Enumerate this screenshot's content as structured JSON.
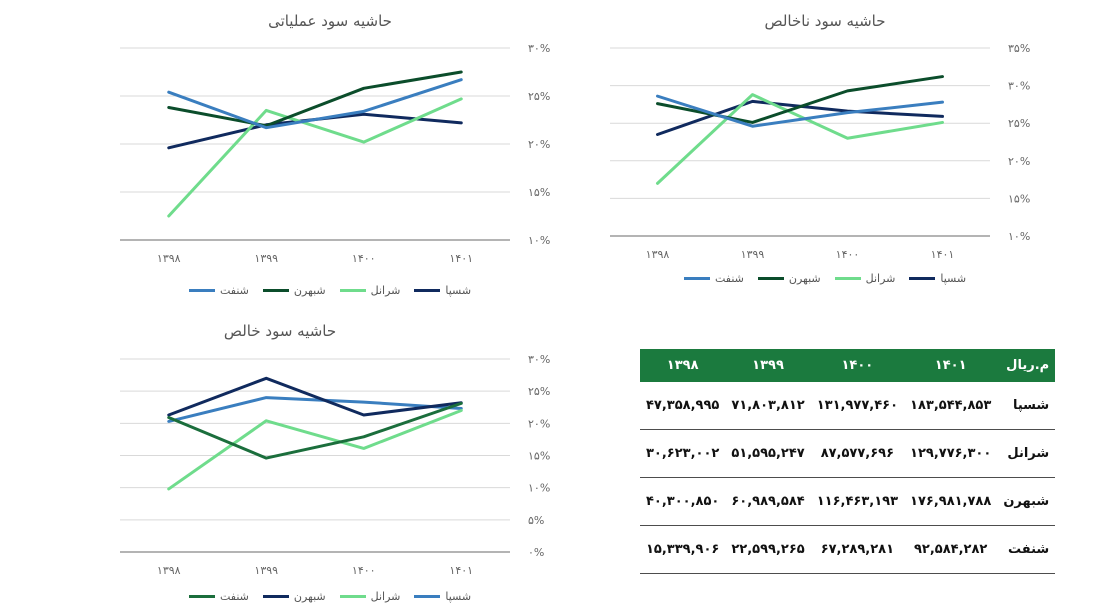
{
  "charts": [
    {
      "id": "operating",
      "title": "حاشیه سود عملیاتی",
      "type": "line",
      "categories": [
        "۱۳۹۸",
        "۱۳۹۹",
        "۱۴۰۰",
        "۱۴۰۱"
      ],
      "ylim": [
        10,
        30
      ],
      "yticks": [
        "۱۰%",
        "۱۵%",
        "۲۰%",
        "۲۵%",
        "۳۰%"
      ],
      "series": [
        {
          "name": "شسپا",
          "color": "#102a5e",
          "values": [
            19.6,
            22.0,
            23.1,
            22.2
          ]
        },
        {
          "name": "شرانل",
          "color": "#6fdc8c",
          "values": [
            12.5,
            23.5,
            20.2,
            24.7
          ]
        },
        {
          "name": "شبهرن",
          "color": "#0b4d2b",
          "values": [
            23.8,
            21.9,
            25.8,
            27.5
          ]
        },
        {
          "name": "شنفت",
          "color": "#3a7ebf",
          "values": [
            25.4,
            21.7,
            23.4,
            26.7
          ]
        }
      ],
      "legend_order": [
        "شنفت",
        "شبهرن",
        "شرانل",
        "شسپا"
      ]
    },
    {
      "id": "gross",
      "title": "حاشیه سود ناخالص",
      "type": "line",
      "categories": [
        "۱۳۹۸",
        "۱۳۹۹",
        "۱۴۰۰",
        "۱۴۰۱"
      ],
      "ylim": [
        10,
        35
      ],
      "yticks": [
        "۱۰%",
        "۱۵%",
        "۲۰%",
        "۲۵%",
        "۳۰%",
        "۳۵%"
      ],
      "series": [
        {
          "name": "شسپا",
          "color": "#102a5e",
          "values": [
            23.5,
            27.9,
            26.6,
            25.9
          ]
        },
        {
          "name": "شرانل",
          "color": "#6fdc8c",
          "values": [
            17.0,
            28.8,
            23.0,
            25.1
          ]
        },
        {
          "name": "شبهرن",
          "color": "#0b4d2b",
          "values": [
            27.6,
            25.1,
            29.3,
            31.2
          ]
        },
        {
          "name": "شنفت",
          "color": "#3a7ebf",
          "values": [
            28.6,
            24.6,
            26.4,
            27.8
          ]
        }
      ],
      "legend_order": [
        "شنفت",
        "شبهرن",
        "شرانل",
        "شسپا"
      ]
    },
    {
      "id": "net",
      "title": "حاشیه سود خالص",
      "type": "line",
      "categories": [
        "۱۳۹۸",
        "۱۳۹۹",
        "۱۴۰۰",
        "۱۴۰۱"
      ],
      "ylim": [
        0,
        30
      ],
      "yticks": [
        "۰%",
        "۵%",
        "۱۰%",
        "۱۵%",
        "۲۰%",
        "۲۵%",
        "۳۰%"
      ],
      "series": [
        {
          "name": "شسپا",
          "color": "#3a7ebf",
          "values": [
            20.3,
            24.0,
            23.3,
            22.3
          ]
        },
        {
          "name": "شرانل",
          "color": "#6fdc8c",
          "values": [
            9.8,
            20.4,
            16.1,
            22.0
          ]
        },
        {
          "name": "شبهرن",
          "color": "#102a5e",
          "values": [
            21.3,
            27.0,
            21.3,
            23.2
          ]
        },
        {
          "name": "شنفت",
          "color": "#1b6e3c",
          "values": [
            20.9,
            14.6,
            17.9,
            23.1
          ]
        }
      ],
      "legend_order": [
        "شنفت",
        "شبهرن",
        "شرانل",
        "شسپا"
      ]
    }
  ],
  "table": {
    "headers": [
      "م.ریال",
      "۱۴۰۱",
      "۱۴۰۰",
      "۱۳۹۹",
      "۱۳۹۸"
    ],
    "rows": [
      [
        "شسپا",
        "۱۸۳,۵۴۴,۸۵۳",
        "۱۳۱,۹۷۷,۴۶۰",
        "۷۱,۸۰۳,۸۱۲",
        "۴۷,۳۵۸,۹۹۵"
      ],
      [
        "شرانل",
        "۱۲۹,۷۷۶,۳۰۰",
        "۸۷,۵۷۷,۶۹۶",
        "۵۱,۵۹۵,۲۴۷",
        "۳۰,۶۲۳,۰۰۲"
      ],
      [
        "شبهرن",
        "۱۷۶,۹۸۱,۷۸۸",
        "۱۱۶,۴۶۳,۱۹۳",
        "۶۰,۹۸۹,۵۸۴",
        "۴۰,۳۰۰,۸۵۰"
      ],
      [
        "شنفت",
        "۹۲,۵۸۴,۲۸۲",
        "۶۷,۲۸۹,۲۸۱",
        "۲۲,۵۹۹,۲۶۵",
        "۱۵,۳۳۹,۹۰۶"
      ]
    ]
  }
}
